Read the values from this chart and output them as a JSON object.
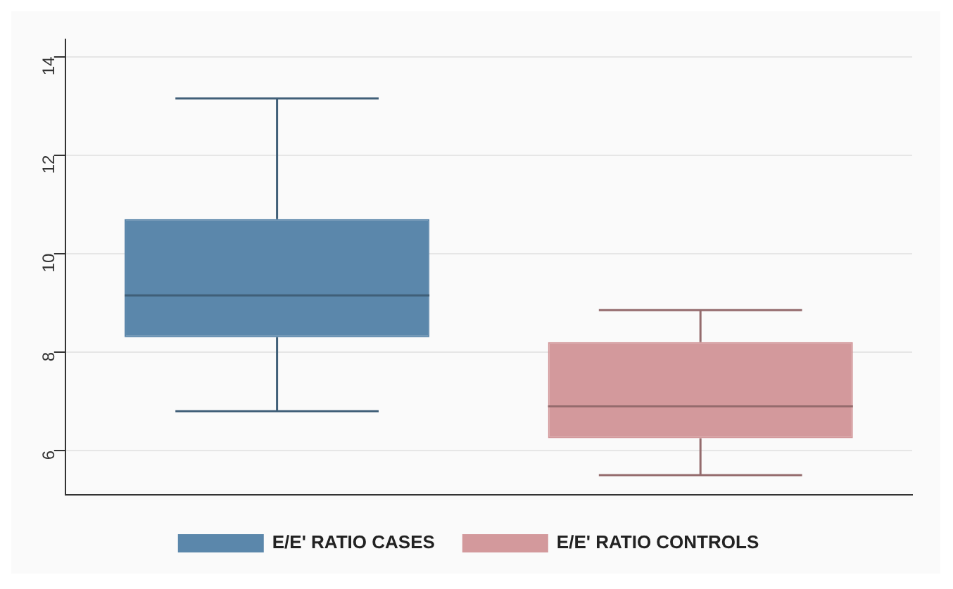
{
  "chart_data": {
    "type": "box",
    "categories": [
      null,
      null
    ],
    "series": [
      {
        "name": "E/E' RATIO CASES",
        "color": "#5b87ab",
        "boxes": [
          {
            "low": 6.8,
            "q1": 8.3,
            "median": 9.15,
            "q3": 10.7,
            "high": 13.15
          },
          null
        ]
      },
      {
        "name": "E/E' RATIO CONTROLS",
        "color": "#d3999c",
        "boxes": [
          null,
          {
            "low": 5.5,
            "q1": 6.25,
            "median": 6.9,
            "q3": 8.2,
            "high": 8.85
          }
        ]
      }
    ],
    "ylim": [
      5.1,
      14.35
    ],
    "yticks": [
      6,
      8,
      10,
      12,
      14
    ],
    "grid": "y",
    "legend": "bottom"
  }
}
